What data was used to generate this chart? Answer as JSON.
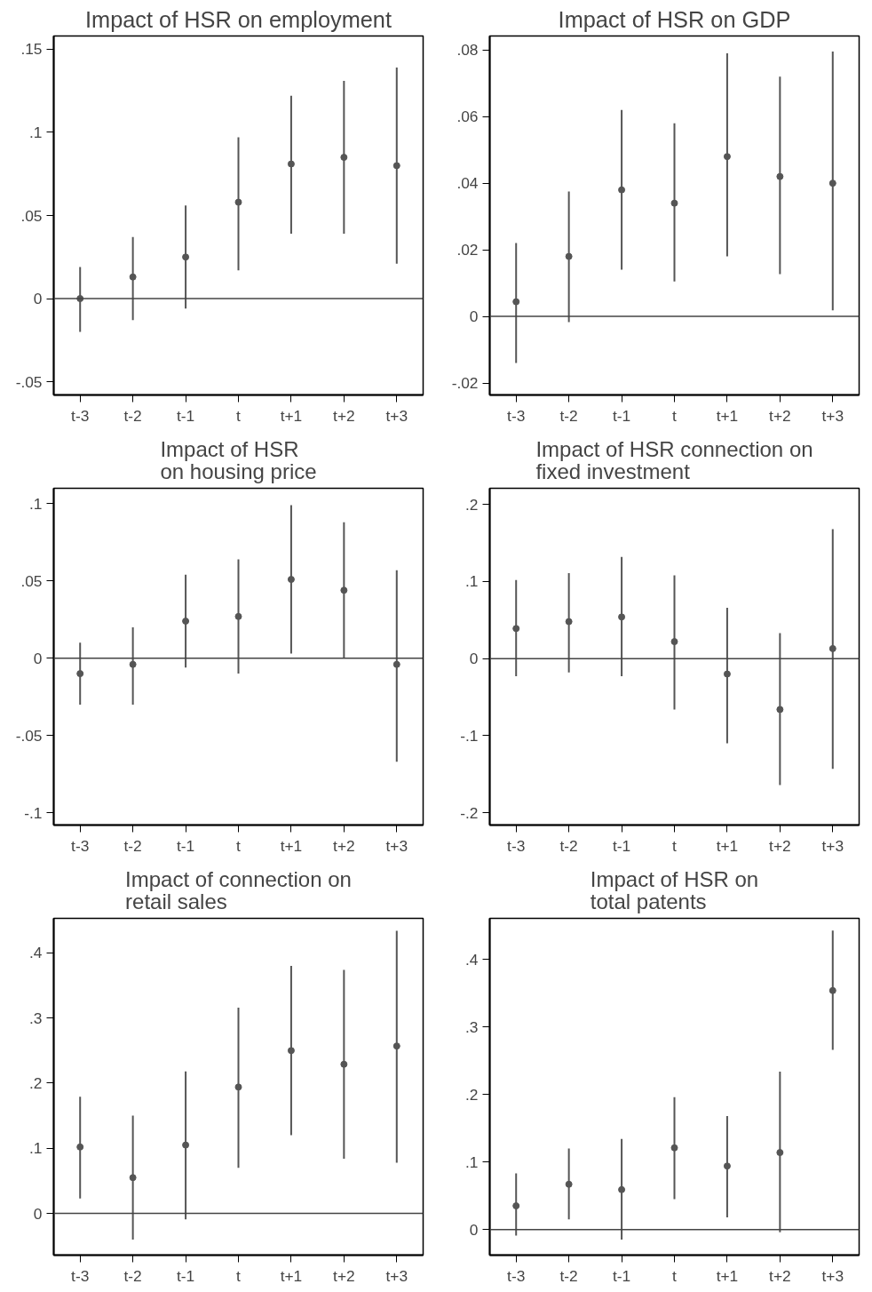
{
  "chart_data": [
    {
      "type": "scatter",
      "title": "Impact of HSR on employment",
      "categories": [
        "t-3",
        "t-2",
        "t-1",
        "t",
        "t+1",
        "t+2",
        "t+3"
      ],
      "color": "#555555",
      "marker": "circle",
      "grid": false,
      "values": [
        0.0,
        0.013,
        0.025,
        0.058,
        0.081,
        0.085,
        0.08
      ],
      "errors": [
        [
          -0.02,
          0.019
        ],
        [
          -0.013,
          0.037
        ],
        [
          -0.006,
          0.056
        ],
        [
          0.017,
          0.097
        ],
        [
          0.039,
          0.122
        ],
        [
          0.039,
          0.131
        ],
        [
          0.021,
          0.139
        ]
      ],
      "ylim": [
        -0.058,
        0.158
      ],
      "yticks": [
        {
          "value": -0.05,
          "label": "-.05"
        },
        0,
        {
          "value": 0.05,
          "label": ".05"
        },
        {
          "value": 0.1,
          "label": ".1"
        },
        {
          "value": 0.15,
          "label": ".15"
        }
      ],
      "ref_lines": [
        {
          "axis": "y",
          "value": 0,
          "color": "#444444"
        }
      ]
    },
    {
      "type": "scatter",
      "title": "Impact of HSR on GDP",
      "categories": [
        "t-3",
        "t-2",
        "t-1",
        "t",
        "t+1",
        "t+2",
        "t+3"
      ],
      "color": "#555555",
      "marker": "circle",
      "grid": false,
      "values": [
        0.0044,
        0.018,
        0.038,
        0.034,
        0.048,
        0.042,
        0.04
      ],
      "errors": [
        [
          -0.014,
          0.022
        ],
        [
          -0.0017,
          0.0375
        ],
        [
          0.014,
          0.062
        ],
        [
          0.0105,
          0.058
        ],
        [
          0.018,
          0.079
        ],
        [
          0.0127,
          0.072
        ],
        [
          0.0018,
          0.0795
        ]
      ],
      "ylim": [
        -0.0236,
        0.0842
      ],
      "yticks": [
        {
          "value": -0.02,
          "label": "-.02"
        },
        0,
        {
          "value": 0.02,
          "label": ".02"
        },
        {
          "value": 0.04,
          "label": ".04"
        },
        {
          "value": 0.06,
          "label": ".06"
        },
        {
          "value": 0.08,
          "label": ".08"
        }
      ],
      "ref_lines": [
        {
          "axis": "y",
          "value": 0,
          "color": "#444444"
        }
      ]
    },
    {
      "type": "scatter",
      "title": "Impact of HSR\non housing price",
      "categories": [
        "t-3",
        "t-2",
        "t-1",
        "t",
        "t+1",
        "t+2",
        "t+3"
      ],
      "color": "#555555",
      "marker": "circle",
      "grid": false,
      "values": [
        -0.01,
        -0.004,
        0.024,
        0.027,
        0.051,
        0.044,
        -0.004
      ],
      "errors": [
        [
          -0.03,
          0.01
        ],
        [
          -0.03,
          0.02
        ],
        [
          -0.006,
          0.054
        ],
        [
          -0.01,
          0.064
        ],
        [
          0.003,
          0.099
        ],
        [
          0.0,
          0.088
        ],
        [
          -0.067,
          0.057
        ]
      ],
      "ylim": [
        -0.108,
        0.11
      ],
      "yticks": [
        {
          "value": -0.1,
          "label": "-.1"
        },
        {
          "value": -0.05,
          "label": "-.05"
        },
        0,
        {
          "value": 0.05,
          "label": ".05"
        },
        {
          "value": 0.1,
          "label": ".1"
        }
      ],
      "ref_lines": [
        {
          "axis": "y",
          "value": 0,
          "color": "#444444"
        }
      ]
    },
    {
      "type": "scatter",
      "title": "Impact of HSR connection on\nfixed investment",
      "categories": [
        "t-3",
        "t-2",
        "t-1",
        "t",
        "t+1",
        "t+2",
        "t+3"
      ],
      "color": "#555555",
      "marker": "circle",
      "grid": false,
      "values": [
        0.039,
        0.048,
        0.054,
        0.022,
        -0.02,
        -0.066,
        0.013
      ],
      "errors": [
        [
          -0.023,
          0.102
        ],
        [
          -0.018,
          0.111
        ],
        [
          -0.023,
          0.132
        ],
        [
          -0.066,
          0.108
        ],
        [
          -0.11,
          0.066
        ],
        [
          -0.164,
          0.033
        ],
        [
          -0.143,
          0.168
        ]
      ],
      "ylim": [
        -0.216,
        0.221
      ],
      "yticks": [
        {
          "value": -0.2,
          "label": "-.2"
        },
        {
          "value": -0.1,
          "label": "-.1"
        },
        0,
        {
          "value": 0.1,
          "label": ".1"
        },
        {
          "value": 0.2,
          "label": ".2"
        }
      ],
      "ref_lines": [
        {
          "axis": "y",
          "value": 0,
          "color": "#444444"
        }
      ]
    },
    {
      "type": "scatter",
      "title": "Impact of connection on\nretail sales",
      "categories": [
        "t-3",
        "t-2",
        "t-1",
        "t",
        "t+1",
        "t+2",
        "t+3"
      ],
      "color": "#555555",
      "marker": "circle",
      "grid": false,
      "values": [
        0.102,
        0.055,
        0.105,
        0.194,
        0.25,
        0.229,
        0.257
      ],
      "errors": [
        [
          0.023,
          0.179
        ],
        [
          -0.04,
          0.15
        ],
        [
          -0.009,
          0.218
        ],
        [
          0.07,
          0.316
        ],
        [
          0.12,
          0.38
        ],
        [
          0.084,
          0.374
        ],
        [
          0.078,
          0.434
        ]
      ],
      "ylim": [
        -0.064,
        0.453
      ],
      "yticks": [
        0,
        {
          "value": 0.1,
          "label": ".1"
        },
        {
          "value": 0.2,
          "label": ".2"
        },
        {
          "value": 0.3,
          "label": ".3"
        },
        {
          "value": 0.4,
          "label": ".4"
        }
      ],
      "ref_lines": [
        {
          "axis": "y",
          "value": 0,
          "color": "#444444"
        }
      ]
    },
    {
      "type": "scatter",
      "title": "Impact of HSR on\ntotal patents",
      "categories": [
        "t-3",
        "t-2",
        "t-1",
        "t",
        "t+1",
        "t+2",
        "t+3"
      ],
      "color": "#555555",
      "marker": "circle",
      "grid": false,
      "values": [
        0.035,
        0.067,
        0.059,
        0.121,
        0.094,
        0.114,
        0.354
      ],
      "errors": [
        [
          -0.009,
          0.083
        ],
        [
          0.015,
          0.12
        ],
        [
          -0.015,
          0.134
        ],
        [
          0.045,
          0.196
        ],
        [
          0.018,
          0.168
        ],
        [
          -0.004,
          0.234
        ],
        [
          0.266,
          0.443
        ]
      ],
      "ylim": [
        -0.038,
        0.461
      ],
      "yticks": [
        0,
        {
          "value": 0.1,
          "label": ".1"
        },
        {
          "value": 0.2,
          "label": ".2"
        },
        {
          "value": 0.3,
          "label": ".3"
        },
        {
          "value": 0.4,
          "label": ".4"
        }
      ],
      "ref_lines": [
        {
          "axis": "y",
          "value": 0,
          "color": "#444444"
        }
      ]
    }
  ]
}
